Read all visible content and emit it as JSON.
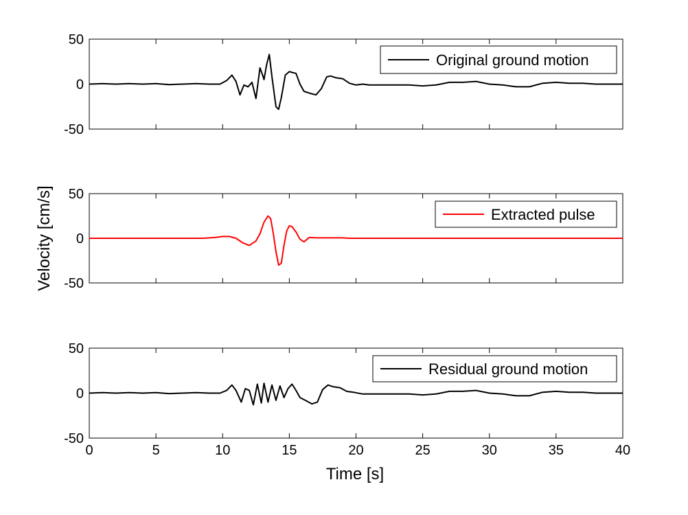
{
  "figure": {
    "xlabel": "Time [s]",
    "ylabel": "Velocity [cm/s]"
  },
  "chart_data": [
    {
      "type": "line",
      "legend": "top-right",
      "grid": false,
      "xlim": [
        0,
        40
      ],
      "ylim": [
        -50,
        50
      ],
      "xticks": [
        0,
        5,
        10,
        15,
        20,
        25,
        30,
        35,
        40
      ],
      "xtick_labels_visible": false,
      "yticks": [
        -50,
        0,
        50
      ],
      "series": [
        {
          "name": "Original ground motion",
          "color": "#000000",
          "x": [
            0,
            1,
            2,
            3,
            4,
            5,
            6,
            7,
            8,
            9,
            9.8,
            10.3,
            10.7,
            11.0,
            11.3,
            11.6,
            11.9,
            12.2,
            12.5,
            12.8,
            13.0,
            13.1,
            13.3,
            13.5,
            13.7,
            14.0,
            14.2,
            14.4,
            14.7,
            15.0,
            15.2,
            15.5,
            15.8,
            16.1,
            16.5,
            17.0,
            17.4,
            17.8,
            18.1,
            18.5,
            19.0,
            19.5,
            20.0,
            20.5,
            21,
            22,
            23,
            24,
            25,
            26,
            27,
            28,
            29,
            30,
            31,
            32,
            33,
            34,
            35,
            36,
            37,
            38,
            39,
            40
          ],
          "y": [
            0,
            0.5,
            0,
            0.5,
            0,
            0.5,
            -0.5,
            0,
            0.5,
            0,
            0,
            4,
            10,
            3,
            -12,
            -1,
            -3,
            2,
            -16,
            18,
            10,
            5,
            22,
            33,
            8,
            -25,
            -28,
            -15,
            10,
            14,
            13,
            12,
            0,
            -8,
            -10,
            -12,
            -5,
            8,
            9,
            7,
            6,
            1,
            -1,
            0,
            -1,
            -1,
            -1,
            -1,
            -2,
            -1,
            2,
            2,
            3,
            0,
            -1,
            -3,
            -3,
            1,
            2,
            1,
            1,
            0,
            0,
            0
          ]
        }
      ]
    },
    {
      "type": "line",
      "legend": "top-right",
      "grid": false,
      "xlim": [
        0,
        40
      ],
      "ylim": [
        -50,
        50
      ],
      "xticks": [
        0,
        5,
        10,
        15,
        20,
        25,
        30,
        35,
        40
      ],
      "xtick_labels_visible": false,
      "yticks": [
        -50,
        0,
        50
      ],
      "series": [
        {
          "name": "Extracted pulse",
          "color": "#ff0000",
          "x": [
            0,
            8.5,
            9.0,
            9.5,
            10.0,
            10.5,
            11.0,
            11.5,
            12.0,
            12.5,
            12.8,
            13.1,
            13.4,
            13.6,
            13.8,
            14.0,
            14.2,
            14.4,
            14.6,
            14.8,
            15.0,
            15.2,
            15.5,
            15.8,
            16.1,
            16.5,
            17.0,
            18.0,
            19.0,
            19.5,
            20.0,
            40
          ],
          "y": [
            0,
            0,
            0.5,
            1,
            2,
            2,
            0,
            -5,
            -8,
            -3,
            5,
            18,
            25,
            22,
            5,
            -15,
            -30,
            -28,
            -8,
            8,
            14,
            13,
            7,
            -1,
            -4,
            1,
            0.5,
            0.5,
            0.5,
            0,
            0,
            0
          ]
        }
      ]
    },
    {
      "type": "line",
      "legend": "top-right",
      "grid": false,
      "xlim": [
        0,
        40
      ],
      "ylim": [
        -50,
        50
      ],
      "xticks": [
        0,
        5,
        10,
        15,
        20,
        25,
        30,
        35,
        40
      ],
      "xtick_labels_visible": true,
      "xtick_labels": [
        "0",
        "5",
        "10",
        "15",
        "20",
        "25",
        "30",
        "35",
        "40"
      ],
      "yticks": [
        -50,
        0,
        50
      ],
      "series": [
        {
          "name": "Residual ground motion",
          "color": "#000000",
          "x": [
            0,
            1,
            2,
            3,
            4,
            5,
            6,
            7,
            8,
            9,
            9.8,
            10.3,
            10.7,
            11.0,
            11.4,
            11.7,
            12.0,
            12.3,
            12.6,
            12.9,
            13.1,
            13.4,
            13.7,
            14.0,
            14.3,
            14.6,
            14.9,
            15.2,
            15.5,
            15.8,
            16.2,
            16.7,
            17.1,
            17.5,
            17.9,
            18.3,
            18.8,
            19.3,
            19.8,
            20.5,
            21,
            22,
            23,
            24,
            25,
            26,
            27,
            28,
            29,
            30,
            31,
            32,
            33,
            34,
            35,
            36,
            37,
            38,
            39,
            40
          ],
          "y": [
            0,
            0.5,
            0,
            0.5,
            0,
            0.5,
            -0.5,
            0,
            0.5,
            0,
            0,
            3,
            9,
            3,
            -10,
            5,
            3,
            -13,
            10,
            -11,
            11,
            -10,
            9,
            -8,
            8,
            -5,
            5,
            10,
            3,
            -5,
            -8,
            -12,
            -10,
            4,
            9,
            7,
            6,
            2,
            1,
            -1,
            -1,
            -1,
            -1,
            -1,
            -2,
            -1,
            2,
            2,
            3,
            0,
            -1,
            -3,
            -3,
            1,
            2,
            1,
            1,
            0,
            0,
            0
          ]
        }
      ]
    }
  ]
}
